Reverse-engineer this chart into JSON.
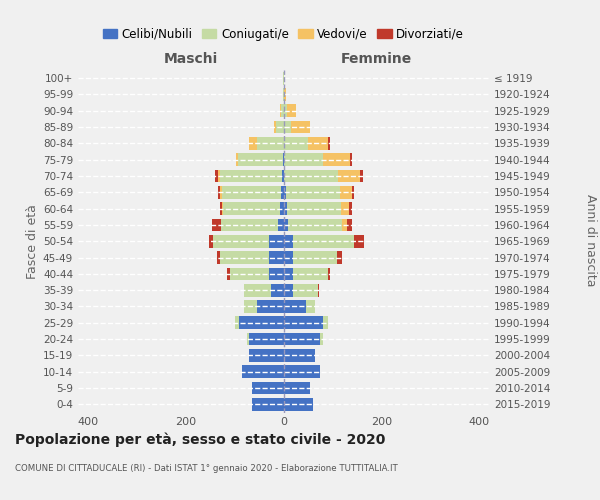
{
  "age_groups": [
    "0-4",
    "5-9",
    "10-14",
    "15-19",
    "20-24",
    "25-29",
    "30-34",
    "35-39",
    "40-44",
    "45-49",
    "50-54",
    "55-59",
    "60-64",
    "65-69",
    "70-74",
    "75-79",
    "80-84",
    "85-89",
    "90-94",
    "95-99",
    "100+"
  ],
  "birth_years": [
    "2015-2019",
    "2010-2014",
    "2005-2009",
    "2000-2004",
    "1995-1999",
    "1990-1994",
    "1985-1989",
    "1980-1984",
    "1975-1979",
    "1970-1974",
    "1965-1969",
    "1960-1964",
    "1955-1959",
    "1950-1954",
    "1945-1949",
    "1940-1944",
    "1935-1939",
    "1930-1934",
    "1925-1929",
    "1920-1924",
    "≤ 1919"
  ],
  "males_celibi": [
    65,
    65,
    85,
    70,
    70,
    90,
    55,
    25,
    30,
    30,
    30,
    12,
    8,
    5,
    4,
    2,
    0,
    0,
    0,
    0,
    0
  ],
  "males_coniugati": [
    0,
    0,
    0,
    0,
    5,
    10,
    25,
    55,
    80,
    100,
    115,
    115,
    115,
    120,
    125,
    90,
    55,
    15,
    5,
    2,
    1
  ],
  "males_vedovi": [
    0,
    0,
    0,
    0,
    0,
    0,
    0,
    0,
    0,
    0,
    0,
    0,
    2,
    4,
    5,
    5,
    15,
    5,
    2,
    0,
    0
  ],
  "males_divorziati": [
    0,
    0,
    0,
    0,
    0,
    0,
    0,
    0,
    5,
    5,
    8,
    20,
    5,
    5,
    5,
    0,
    0,
    0,
    0,
    0,
    0
  ],
  "females_nubili": [
    60,
    55,
    75,
    65,
    75,
    80,
    45,
    20,
    20,
    20,
    20,
    10,
    8,
    5,
    2,
    0,
    0,
    0,
    0,
    0,
    0
  ],
  "females_coniugate": [
    0,
    0,
    0,
    0,
    5,
    10,
    20,
    50,
    70,
    90,
    125,
    110,
    110,
    110,
    110,
    80,
    50,
    15,
    8,
    2,
    0
  ],
  "females_vedove": [
    0,
    0,
    0,
    0,
    0,
    0,
    0,
    0,
    0,
    0,
    0,
    10,
    15,
    25,
    45,
    55,
    40,
    40,
    18,
    4,
    1
  ],
  "females_divorziate": [
    0,
    0,
    0,
    0,
    0,
    0,
    0,
    2,
    5,
    10,
    20,
    10,
    8,
    5,
    5,
    5,
    5,
    0,
    0,
    0,
    0
  ],
  "color_celibi": "#4472c4",
  "color_coniugati": "#c5dba4",
  "color_vedovi": "#f5c264",
  "color_divorziati": "#c0392b",
  "xlim": 420,
  "title": "Popolazione per età, sesso e stato civile - 2020",
  "subtitle": "COMUNE DI CITTADUCALE (RI) - Dati ISTAT 1° gennaio 2020 - Elaborazione TUTTITALIA.IT",
  "ylabel_left": "Fasce di età",
  "ylabel_right": "Anni di nascita",
  "xlabel_left": "Maschi",
  "xlabel_right": "Femmine",
  "bg_color": "#f0f0f0"
}
